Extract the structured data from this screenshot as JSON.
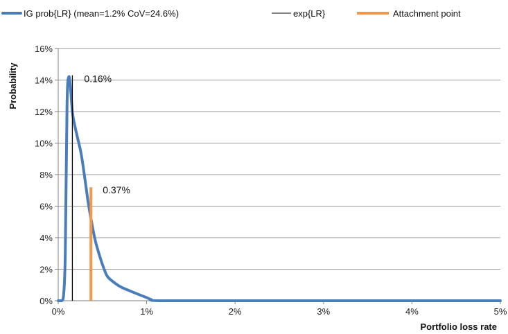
{
  "chart_data": {
    "type": "line",
    "legend": {
      "placement": "top",
      "entries": [
        {
          "label": "IG prob{LR} (mean=1.2% CoV=24.6%)",
          "color": "#4a7ebb"
        },
        {
          "label": "exp{LR}",
          "color": "#000000"
        },
        {
          "label": "Attachment point",
          "color": "#f79646"
        }
      ]
    },
    "xlabel": "Portfolio loss rate",
    "ylabel": "Probability",
    "xlim": [
      0,
      5
    ],
    "ylim": [
      0,
      16
    ],
    "x_ticks": [
      0,
      1,
      2,
      3,
      4,
      5
    ],
    "x_tick_labels": [
      "0%",
      "1%",
      "2%",
      "3%",
      "4%",
      "5%"
    ],
    "y_ticks": [
      0,
      2,
      4,
      6,
      8,
      10,
      12,
      14,
      16
    ],
    "y_tick_labels": [
      "0%",
      "2%",
      "4%",
      "6%",
      "8%",
      "10%",
      "12%",
      "14%",
      "16%"
    ],
    "grid": "horizontal",
    "series": [
      {
        "name": "IG prob{LR} (mean=1.2% CoV=24.6%)",
        "color": "#4a7ebb",
        "points": [
          [
            0.0,
            0.0
          ],
          [
            0.04,
            0.0
          ],
          [
            0.06,
            0.3
          ],
          [
            0.08,
            3.0
          ],
          [
            0.1,
            12.5
          ],
          [
            0.12,
            14.2
          ],
          [
            0.14,
            13.4
          ],
          [
            0.16,
            12.0
          ],
          [
            0.18,
            11.3
          ],
          [
            0.22,
            10.3
          ],
          [
            0.26,
            9.3
          ],
          [
            0.3,
            7.8
          ],
          [
            0.34,
            6.2
          ],
          [
            0.38,
            4.9
          ],
          [
            0.42,
            3.8
          ],
          [
            0.46,
            3.0
          ],
          [
            0.5,
            2.3
          ],
          [
            0.55,
            1.6
          ],
          [
            0.6,
            1.3
          ],
          [
            0.7,
            0.9
          ],
          [
            0.8,
            0.65
          ],
          [
            0.9,
            0.42
          ],
          [
            1.0,
            0.2
          ],
          [
            1.05,
            0.08
          ],
          [
            1.15,
            0.0
          ],
          [
            2.0,
            0.0
          ],
          [
            3.0,
            0.0
          ],
          [
            4.0,
            0.0
          ],
          [
            5.0,
            0.0
          ]
        ]
      }
    ],
    "markers": [
      {
        "name": "exp{LR}",
        "x": 0.16,
        "y_top": 14.3,
        "color": "#000000",
        "label": "0.16%"
      },
      {
        "name": "Attachment point",
        "x": 0.37,
        "y_top": 7.2,
        "color": "#f79646",
        "label": "0.37%"
      }
    ]
  }
}
